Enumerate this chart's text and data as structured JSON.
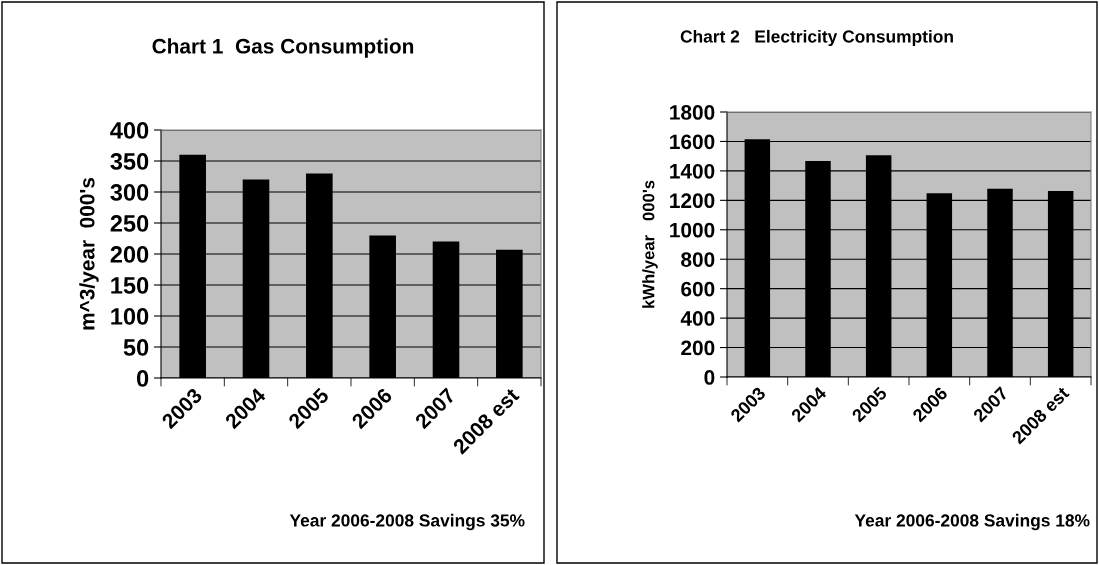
{
  "chart_data": [
    {
      "type": "bar",
      "title": "Chart 1  Gas Consumption",
      "ylabel": "m^3/year  000's",
      "categories": [
        "2003",
        "2004",
        "2005",
        "2006",
        "2007",
        "2008 est"
      ],
      "values": [
        360,
        320,
        330,
        230,
        220,
        207
      ],
      "color": "#000000",
      "ylim": [
        0,
        400
      ],
      "yticks": [
        0,
        50,
        100,
        150,
        200,
        250,
        300,
        350,
        400
      ],
      "grid": "y",
      "annotations": [
        "Year 2006-2008 Savings 35%"
      ]
    },
    {
      "type": "bar",
      "title": "Chart 2   Electricity Consumption",
      "ylabel": "kWh/year   000's",
      "categories": [
        "2003",
        "2004",
        "2005",
        "2006",
        "2007",
        "2008 est"
      ],
      "values": [
        1615,
        1468,
        1506,
        1248,
        1278,
        1264
      ],
      "color": "#000000",
      "ylim": [
        0,
        1800
      ],
      "yticks": [
        0,
        200,
        400,
        600,
        800,
        1000,
        1200,
        1400,
        1600,
        1800
      ],
      "grid": "y",
      "annotations": [
        "Year 2006-2008 Savings 18%"
      ]
    }
  ]
}
